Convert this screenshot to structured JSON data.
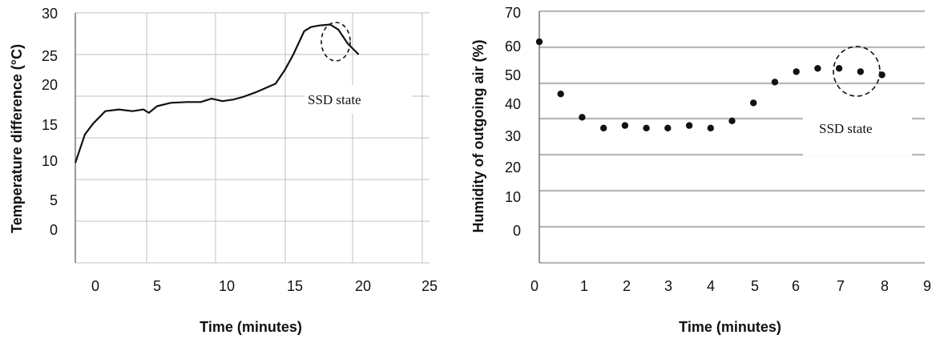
{
  "chart_data": [
    {
      "type": "line",
      "title": "",
      "xlabel": "Time (minutes)",
      "ylabel": "Temperature difference (°C)",
      "x_ticks": [
        "0",
        "5",
        "10",
        "15",
        "20",
        "25"
      ],
      "y_ticks": [
        "0",
        "5",
        "10",
        "15",
        "20",
        "25",
        "30"
      ],
      "xlim": [
        -1,
        25
      ],
      "ylim": [
        0,
        30
      ],
      "grid": true,
      "annotation": "SSD state",
      "series": [
        {
          "x": [
            -1,
            -0.3,
            0.3,
            1.2,
            2.2,
            3.2,
            4.0,
            4.4,
            5.0,
            6.0,
            7.2,
            8.2,
            9.0,
            9.8,
            10.6,
            11.3,
            12.3,
            13.0,
            13.7,
            14.4,
            15.0,
            15.8,
            16.3,
            17.0,
            17.7,
            18.3,
            19.0,
            19.8
          ],
          "y": [
            12.0,
            15.4,
            16.7,
            18.2,
            18.4,
            18.2,
            18.4,
            18.0,
            18.8,
            19.2,
            19.3,
            19.3,
            19.7,
            19.4,
            19.6,
            19.9,
            20.5,
            21.0,
            21.5,
            23.2,
            25.0,
            27.8,
            28.3,
            28.5,
            28.6,
            28.0,
            26.3,
            25.0
          ]
        }
      ]
    },
    {
      "type": "scatter",
      "title": "",
      "xlabel": "Time (minutes)",
      "ylabel": "Humidity of outgoing air (%)",
      "x_ticks": [
        "0",
        "1",
        "2",
        "3",
        "4",
        "5",
        "6",
        "7",
        "8",
        "9"
      ],
      "y_ticks": [
        "0",
        "10",
        "20",
        "30",
        "40",
        "50",
        "60",
        "70"
      ],
      "xlim": [
        0,
        9
      ],
      "ylim": [
        0,
        70
      ],
      "grid": true,
      "annotation": "SSD state",
      "series": [
        {
          "x": [
            0,
            0.5,
            1.0,
            1.5,
            2.0,
            2.5,
            3.0,
            3.5,
            4.0,
            4.5,
            5.0,
            5.5,
            6.0,
            6.5,
            7.0,
            7.5,
            8.0
          ],
          "y": [
            61.5,
            47.0,
            40.5,
            37.5,
            38.2,
            37.5,
            37.5,
            38.2,
            37.5,
            39.5,
            44.5,
            50.3,
            53.2,
            54.1,
            54.1,
            53.2,
            52.3
          ]
        }
      ]
    }
  ]
}
